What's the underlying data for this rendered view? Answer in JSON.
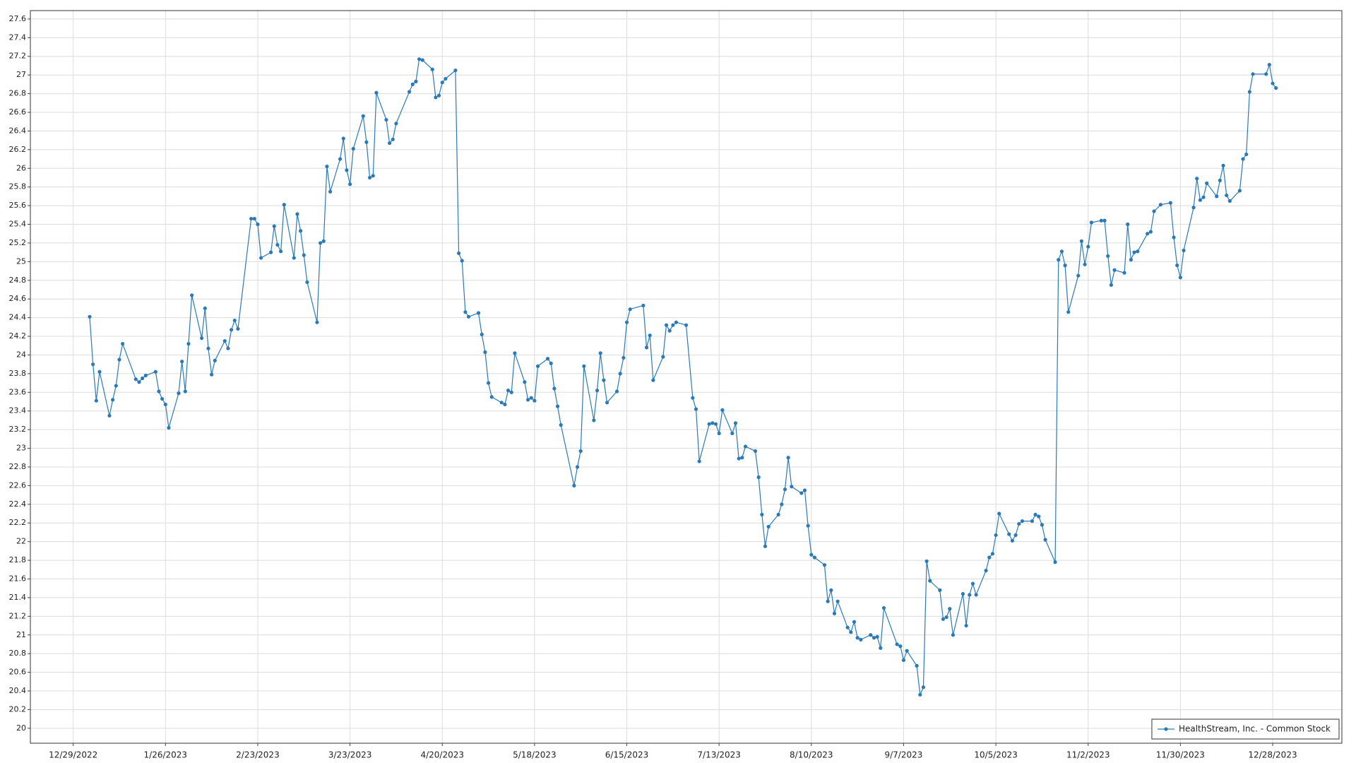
{
  "chart_data": {
    "type": "line",
    "x": [
      "1/3/2023",
      "1/4/2023",
      "1/5/2023",
      "1/6/2023",
      "1/9/2023",
      "1/10/2023",
      "1/11/2023",
      "1/12/2023",
      "1/13/2023",
      "1/17/2023",
      "1/18/2023",
      "1/19/2023",
      "1/20/2023",
      "1/23/2023",
      "1/24/2023",
      "1/25/2023",
      "1/26/2023",
      "1/27/2023",
      "1/30/2023",
      "1/31/2023",
      "2/1/2023",
      "2/2/2023",
      "2/3/2023",
      "2/6/2023",
      "2/7/2023",
      "2/8/2023",
      "2/9/2023",
      "2/10/2023",
      "2/13/2023",
      "2/14/2023",
      "2/15/2023",
      "2/16/2023",
      "2/17/2023",
      "2/21/2023",
      "2/22/2023",
      "2/23/2023",
      "2/24/2023",
      "2/27/2023",
      "2/28/2023",
      "3/1/2023",
      "3/2/2023",
      "3/3/2023",
      "3/6/2023",
      "3/7/2023",
      "3/8/2023",
      "3/9/2023",
      "3/10/2023",
      "3/13/2023",
      "3/14/2023",
      "3/15/2023",
      "3/16/2023",
      "3/17/2023",
      "3/20/2023",
      "3/21/2023",
      "3/22/2023",
      "3/23/2023",
      "3/24/2023",
      "3/27/2023",
      "3/28/2023",
      "3/29/2023",
      "3/30/2023",
      "3/31/2023",
      "4/3/2023",
      "4/4/2023",
      "4/5/2023",
      "4/6/2023",
      "4/10/2023",
      "4/11/2023",
      "4/12/2023",
      "4/13/2023",
      "4/14/2023",
      "4/17/2023",
      "4/18/2023",
      "4/19/2023",
      "4/20/2023",
      "4/21/2023",
      "4/24/2023",
      "4/25/2023",
      "4/26/2023",
      "4/27/2023",
      "4/28/2023",
      "5/1/2023",
      "5/2/2023",
      "5/3/2023",
      "5/4/2023",
      "5/5/2023",
      "5/8/2023",
      "5/9/2023",
      "5/10/2023",
      "5/11/2023",
      "5/12/2023",
      "5/15/2023",
      "5/16/2023",
      "5/17/2023",
      "5/18/2023",
      "5/19/2023",
      "5/22/2023",
      "5/23/2023",
      "5/24/2023",
      "5/25/2023",
      "5/26/2023",
      "5/30/2023",
      "5/31/2023",
      "6/1/2023",
      "6/2/2023",
      "6/5/2023",
      "6/6/2023",
      "6/7/2023",
      "6/8/2023",
      "6/9/2023",
      "6/12/2023",
      "6/13/2023",
      "6/14/2023",
      "6/15/2023",
      "6/16/2023",
      "6/20/2023",
      "6/21/2023",
      "6/22/2023",
      "6/23/2023",
      "6/26/2023",
      "6/27/2023",
      "6/28/2023",
      "6/29/2023",
      "6/30/2023",
      "7/3/2023",
      "7/5/2023",
      "7/6/2023",
      "7/7/2023",
      "7/10/2023",
      "7/11/2023",
      "7/12/2023",
      "7/13/2023",
      "7/14/2023",
      "7/17/2023",
      "7/18/2023",
      "7/19/2023",
      "7/20/2023",
      "7/21/2023",
      "7/24/2023",
      "7/25/2023",
      "7/26/2023",
      "7/27/2023",
      "7/28/2023",
      "7/31/2023",
      "8/1/2023",
      "8/2/2023",
      "8/3/2023",
      "8/4/2023",
      "8/7/2023",
      "8/8/2023",
      "8/9/2023",
      "8/10/2023",
      "8/11/2023",
      "8/14/2023",
      "8/15/2023",
      "8/16/2023",
      "8/17/2023",
      "8/18/2023",
      "8/21/2023",
      "8/22/2023",
      "8/23/2023",
      "8/24/2023",
      "8/25/2023",
      "8/28/2023",
      "8/29/2023",
      "8/30/2023",
      "8/31/2023",
      "9/1/2023",
      "9/5/2023",
      "9/6/2023",
      "9/7/2023",
      "9/8/2023",
      "9/11/2023",
      "9/12/2023",
      "9/13/2023",
      "9/14/2023",
      "9/15/2023",
      "9/18/2023",
      "9/19/2023",
      "9/20/2023",
      "9/21/2023",
      "9/22/2023",
      "9/25/2023",
      "9/26/2023",
      "9/27/2023",
      "9/28/2023",
      "9/29/2023",
      "10/2/2023",
      "10/3/2023",
      "10/4/2023",
      "10/5/2023",
      "10/6/2023",
      "10/9/2023",
      "10/10/2023",
      "10/11/2023",
      "10/12/2023",
      "10/13/2023",
      "10/16/2023",
      "10/17/2023",
      "10/18/2023",
      "10/19/2023",
      "10/20/2023",
      "10/23/2023",
      "10/24/2023",
      "10/25/2023",
      "10/26/2023",
      "10/27/2023",
      "10/30/2023",
      "10/31/2023",
      "11/1/2023",
      "11/2/2023",
      "11/3/2023",
      "11/6/2023",
      "11/7/2023",
      "11/8/2023",
      "11/9/2023",
      "11/10/2023",
      "11/13/2023",
      "11/14/2023",
      "11/15/2023",
      "11/16/2023",
      "11/17/2023",
      "11/20/2023",
      "11/21/2023",
      "11/22/2023",
      "11/24/2023",
      "11/27/2023",
      "11/28/2023",
      "11/29/2023",
      "11/30/2023",
      "12/1/2023",
      "12/4/2023",
      "12/5/2023",
      "12/6/2023",
      "12/7/2023",
      "12/8/2023",
      "12/11/2023",
      "12/12/2023",
      "12/13/2023",
      "12/14/2023",
      "12/15/2023",
      "12/18/2023",
      "12/19/2023",
      "12/20/2023",
      "12/21/2023",
      "12/22/2023",
      "12/26/2023",
      "12/27/2023",
      "12/28/2023",
      "12/29/2023"
    ],
    "series": [
      {
        "name": "HealthStream, Inc. - Common Stock",
        "color": "#2a7ab8",
        "values": [
          24.41,
          23.9,
          23.51,
          23.82,
          23.35,
          23.52,
          23.67,
          23.95,
          24.12,
          23.74,
          23.71,
          23.75,
          23.78,
          23.82,
          23.61,
          23.53,
          23.47,
          23.22,
          23.59,
          23.93,
          23.61,
          24.12,
          24.64,
          24.18,
          24.5,
          24.07,
          23.79,
          23.94,
          24.15,
          24.07,
          24.27,
          24.37,
          24.28,
          25.46,
          25.46,
          25.4,
          25.04,
          25.1,
          25.38,
          25.18,
          25.11,
          25.61,
          25.04,
          25.51,
          25.33,
          25.07,
          24.78,
          24.35,
          25.2,
          25.22,
          26.02,
          25.75,
          26.1,
          26.32,
          25.98,
          25.83,
          26.21,
          26.56,
          26.28,
          25.9,
          25.92,
          26.81,
          26.52,
          26.27,
          26.31,
          26.48,
          26.82,
          26.9,
          26.93,
          27.17,
          27.16,
          27.06,
          26.76,
          26.78,
          26.92,
          26.96,
          27.05,
          25.09,
          25.01,
          24.46,
          24.41,
          24.45,
          24.22,
          24.03,
          23.7,
          23.55,
          23.49,
          23.47,
          23.62,
          23.6,
          24.02,
          23.71,
          23.52,
          23.54,
          23.51,
          23.88,
          23.96,
          23.91,
          23.64,
          23.45,
          23.25,
          22.6,
          22.8,
          22.97,
          23.88,
          23.3,
          23.62,
          24.02,
          23.73,
          23.49,
          23.61,
          23.8,
          23.97,
          24.35,
          24.49,
          24.53,
          24.08,
          24.21,
          23.73,
          23.98,
          24.32,
          24.26,
          24.32,
          24.35,
          24.32,
          23.54,
          23.42,
          22.86,
          23.26,
          23.27,
          23.26,
          23.16,
          23.41,
          23.16,
          23.27,
          22.89,
          22.9,
          23.02,
          22.97,
          22.69,
          22.29,
          21.95,
          22.16,
          22.29,
          22.4,
          22.56,
          22.9,
          22.59,
          22.52,
          22.55,
          22.17,
          21.86,
          21.83,
          21.75,
          21.36,
          21.48,
          21.23,
          21.36,
          21.08,
          21.03,
          21.14,
          20.97,
          20.95,
          21.0,
          20.97,
          20.98,
          20.86,
          21.29,
          20.9,
          20.88,
          20.73,
          20.83,
          20.67,
          20.36,
          20.44,
          21.79,
          21.58,
          21.48,
          21.17,
          21.19,
          21.28,
          21.0,
          21.44,
          21.1,
          21.43,
          21.55,
          21.43,
          21.69,
          21.83,
          21.87,
          22.07,
          22.3,
          22.08,
          22.01,
          22.07,
          22.19,
          22.22,
          22.22,
          22.29,
          22.27,
          22.18,
          22.02,
          21.78,
          25.02,
          25.11,
          24.96,
          24.46,
          24.85,
          25.22,
          24.97,
          25.16,
          25.42,
          25.44,
          25.44,
          25.06,
          24.75,
          24.91,
          24.88,
          25.4,
          25.02,
          25.1,
          25.11,
          25.3,
          25.32,
          25.54,
          25.61,
          25.63,
          25.26,
          24.96,
          24.83,
          25.12,
          25.58,
          25.89,
          25.66,
          25.69,
          25.84,
          25.7,
          25.87,
          26.03,
          25.71,
          25.65,
          25.76,
          26.1,
          26.15,
          26.82,
          27.01,
          27.01,
          27.11,
          26.91,
          26.86
        ]
      }
    ],
    "xlim": [
      "12/16/2022",
      "1/18/2024"
    ],
    "xticks": [
      "12/29/2022",
      "1/26/2023",
      "2/23/2023",
      "3/23/2023",
      "4/20/2023",
      "5/18/2023",
      "6/15/2023",
      "7/13/2023",
      "8/10/2023",
      "9/7/2023",
      "10/5/2023",
      "11/2/2023",
      "11/30/2023",
      "12/28/2023"
    ],
    "ylim": [
      19.84,
      27.69
    ],
    "yticks": [
      20,
      20.2,
      20.4,
      20.6,
      20.8,
      21,
      21.2,
      21.4,
      21.6,
      21.8,
      22,
      22.2,
      22.4,
      22.6,
      22.8,
      23,
      23.2,
      23.4,
      23.6,
      23.8,
      24,
      24.2,
      24.4,
      24.6,
      24.8,
      25,
      25.2,
      25.4,
      25.6,
      25.8,
      26,
      26.2,
      26.4,
      26.6,
      26.8,
      27,
      27.2,
      27.4,
      27.6
    ],
    "grid": true,
    "legend": "lower right",
    "markers": true
  }
}
